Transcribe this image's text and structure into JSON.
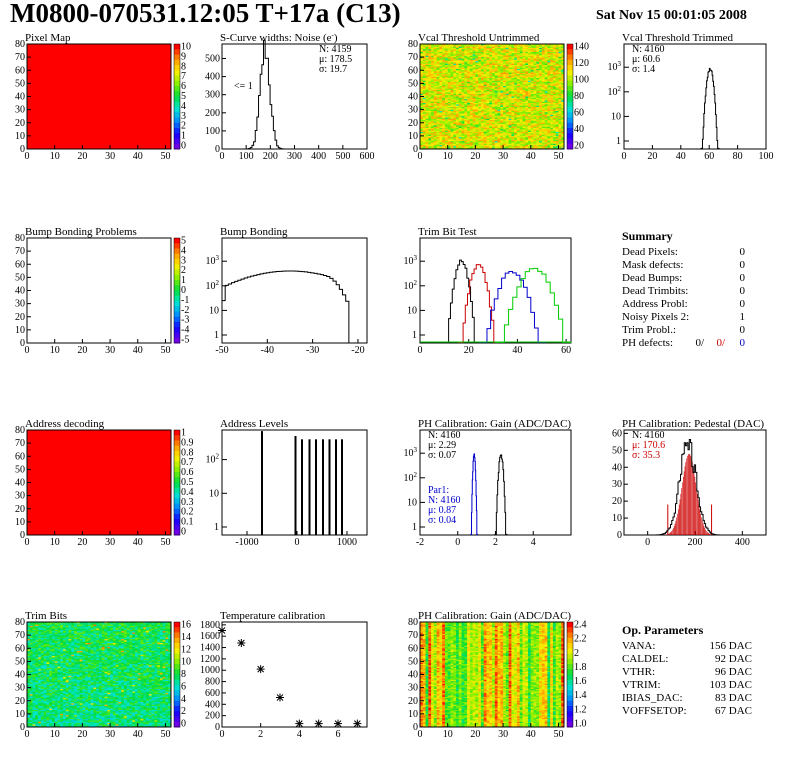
{
  "header": {
    "title": "M0800-070531.12:05 T+17a (C13)",
    "date": "Sat Nov 15 00:01:05 2008"
  },
  "colors": {
    "red_fill": "#ff0000",
    "blue_hist": "#0000cc",
    "red_hist": "#cc0000",
    "green_hist": "#00cc00"
  },
  "chart_data": [
    {
      "id": "pixel_map",
      "type": "heatmap",
      "title": "Pixel Map",
      "xlim": [
        0,
        52
      ],
      "ylim": [
        0,
        80
      ],
      "xticks": [
        0,
        10,
        20,
        30,
        40,
        50
      ],
      "yticks": [
        0,
        10,
        20,
        30,
        40,
        50,
        60,
        70,
        80
      ],
      "zlim": [
        0,
        10
      ],
      "zticks": [
        "10",
        "9",
        "8",
        "7",
        "6",
        "5",
        "4",
        "3",
        "2",
        "1",
        "0"
      ],
      "fill": "uniform-max"
    },
    {
      "id": "scurve",
      "type": "histogram",
      "title": "S-Curve widths: Noise (e",
      "title_sup": "-",
      "title_end": ")",
      "xlim": [
        0,
        600
      ],
      "ylim": [
        0,
        580
      ],
      "xticks": [
        0,
        100,
        200,
        300,
        400,
        500,
        600
      ],
      "yticks": [
        0,
        100,
        200,
        300,
        400,
        500
      ],
      "stats": [
        "N: 4159",
        "μ: 178.5",
        "σ: 19.7"
      ],
      "annotation": "<= 1",
      "peak": {
        "mean": 178.5,
        "sigma": 19.7,
        "max": 560
      }
    },
    {
      "id": "vcal_untrimmed",
      "type": "heatmap",
      "title": "Vcal Threshold Untrimmed",
      "xlim": [
        0,
        52
      ],
      "ylim": [
        0,
        80
      ],
      "xticks": [
        0,
        10,
        20,
        30,
        40,
        50
      ],
      "yticks": [
        0,
        10,
        20,
        30,
        40,
        50,
        60,
        70,
        80
      ],
      "zticks": [
        "140",
        "120",
        "100",
        "80",
        "60",
        "40",
        "20"
      ],
      "fill": "noise-yellow"
    },
    {
      "id": "vcal_trimmed",
      "type": "histogram",
      "title": "Vcal Threshold Trimmed",
      "log": true,
      "xlim": [
        0,
        100
      ],
      "xticks": [
        0,
        20,
        40,
        60,
        80,
        100
      ],
      "yticks": [
        "1",
        "10",
        "10^2",
        "10^3"
      ],
      "stats": [
        "N: 4160",
        "μ: 60.6",
        "σ:  1.4"
      ],
      "peak": {
        "mean": 60.6,
        "sigma": 1.4,
        "max": 900
      }
    },
    {
      "id": "bump_problems",
      "type": "heatmap",
      "title": "Bump Bonding Problems",
      "xlim": [
        0,
        52
      ],
      "ylim": [
        0,
        80
      ],
      "xticks": [
        0,
        10,
        20,
        30,
        40,
        50
      ],
      "yticks": [
        0,
        10,
        20,
        30,
        40,
        50,
        60,
        70,
        80
      ],
      "zticks": [
        "5",
        "4",
        "3",
        "2",
        "1",
        "0",
        "-1",
        "-2",
        "-3",
        "-4",
        "-5"
      ],
      "fill": "empty"
    },
    {
      "id": "bump_bonding",
      "type": "histogram",
      "title": "Bump Bonding",
      "log": true,
      "xlim": [
        -50,
        -18
      ],
      "xticks": [
        -50,
        -40,
        -30,
        -20
      ],
      "yticks": [
        "1",
        "10",
        "10^2",
        "10^3"
      ],
      "peak": {
        "mean": -35,
        "sigma": 7,
        "max": 400
      }
    },
    {
      "id": "trim_bit_test",
      "type": "histogram",
      "title": "Trim Bit Test",
      "log": true,
      "xlim": [
        0,
        62
      ],
      "xticks": [
        0,
        20,
        40,
        60
      ],
      "yticks": [
        "1",
        "10",
        "10^2",
        "10^3"
      ],
      "series": [
        {
          "color": "#000000",
          "mean": 17,
          "sigma": 1.5,
          "max": 1000
        },
        {
          "color": "#cc0000",
          "mean": 24,
          "sigma": 1.8,
          "max": 700
        },
        {
          "color": "#0000cc",
          "mean": 38,
          "sigma": 3,
          "max": 400
        },
        {
          "color": "#00cc00",
          "mean": 47,
          "sigma": 3.5,
          "max": 500
        }
      ]
    },
    {
      "id": "address_decoding",
      "type": "heatmap",
      "title": "Address decoding",
      "xlim": [
        0,
        52
      ],
      "ylim": [
        0,
        80
      ],
      "xticks": [
        0,
        10,
        20,
        30,
        40,
        50
      ],
      "yticks": [
        0,
        10,
        20,
        30,
        40,
        50,
        60,
        70,
        80
      ],
      "zticks": [
        "1",
        "0.9",
        "0.8",
        "0.7",
        "0.6",
        "0.5",
        "0.4",
        "0.3",
        "0.2",
        "0.1",
        "0"
      ],
      "fill": "uniform-max"
    },
    {
      "id": "address_levels",
      "type": "histogram",
      "title": "Address Levels",
      "log": true,
      "xlim": [
        -1500,
        1400
      ],
      "xticks": [
        -1000,
        0,
        1000
      ],
      "yticks": [
        "1",
        "10",
        "10^2"
      ],
      "spikes": [
        -700,
        -30,
        100,
        250,
        380,
        520,
        650,
        780,
        900
      ]
    },
    {
      "id": "ph_gain",
      "type": "histogram",
      "title": "PH Calibration: Gain (ADC/DAC)",
      "log": true,
      "xlim": [
        -2,
        6
      ],
      "xticks": [
        -2,
        0,
        2,
        4
      ],
      "yticks": [
        "1",
        "10",
        "10^2",
        "10^3"
      ],
      "stats": [
        "N: 4160",
        "μ: 2.29",
        "σ: 0.07"
      ],
      "stats2": [
        "Par1:",
        "N: 4160",
        "μ: 0.87",
        "σ: 0.04"
      ],
      "series": [
        {
          "color": "#000000",
          "mean": 2.29,
          "sigma": 0.07,
          "max": 900
        },
        {
          "color": "#0000cc",
          "mean": 0.87,
          "sigma": 0.04,
          "max": 900
        }
      ]
    },
    {
      "id": "ph_pedestal",
      "type": "histogram",
      "title": "PH Calibration: Pedestal (DAC)",
      "xlim": [
        -100,
        500
      ],
      "ylim": [
        0,
        62
      ],
      "xticks": [
        0,
        200,
        400
      ],
      "yticks": [
        0,
        10,
        20,
        30,
        40,
        50,
        60
      ],
      "stats": [
        "N: 4160",
        "μ: 170.6",
        "σ: 35.3"
      ],
      "peak": {
        "mean": 170.6,
        "sigma": 35.3,
        "max": 52
      }
    },
    {
      "id": "trim_bits",
      "type": "heatmap",
      "title": "Trim Bits",
      "xlim": [
        0,
        52
      ],
      "ylim": [
        0,
        80
      ],
      "xticks": [
        0,
        10,
        20,
        30,
        40,
        50
      ],
      "yticks": [
        0,
        10,
        20,
        30,
        40,
        50,
        60,
        70,
        80
      ],
      "zticks": [
        "16",
        "14",
        "12",
        "10",
        "8",
        "6",
        "4",
        "2",
        "0"
      ],
      "fill": "noise-green"
    },
    {
      "id": "temp_cal",
      "type": "scatter",
      "title": "Temperature calibration",
      "xlim": [
        0,
        7.5
      ],
      "ylim": [
        0,
        1850
      ],
      "xticks": [
        0,
        2,
        4,
        6
      ],
      "yticks": [
        0,
        200,
        400,
        600,
        800,
        1000,
        1200,
        1400,
        1600,
        1800
      ],
      "x": [
        0,
        1,
        2,
        3,
        4,
        5,
        6,
        7
      ],
      "y": [
        1700,
        1480,
        1020,
        520,
        60,
        60,
        60,
        60
      ]
    },
    {
      "id": "ph_gain_map",
      "type": "heatmap",
      "title": "PH Calibration: Gain (ADC/DAC)",
      "xlim": [
        0,
        52
      ],
      "ylim": [
        0,
        80
      ],
      "xticks": [
        0,
        10,
        20,
        30,
        40,
        50
      ],
      "yticks": [
        0,
        10,
        20,
        30,
        40,
        50,
        60,
        70,
        80
      ],
      "zticks": [
        "2.4",
        "2.2",
        "2",
        "1.8",
        "1.6",
        "1.4",
        "1.2",
        "1.0"
      ],
      "fill": "noise-columns"
    }
  ],
  "summary": {
    "title": "Summary",
    "rows": [
      {
        "label": "Dead Pixels:",
        "value": "0"
      },
      {
        "label": "Mask defects:",
        "value": "0"
      },
      {
        "label": "Dead Bumps:",
        "value": "0"
      },
      {
        "label": "Dead Trimbits:",
        "value": "0"
      },
      {
        "label": "Address Probl:",
        "value": "0"
      },
      {
        "label": "Noisy Pixels 2:",
        "value": "1"
      },
      {
        "label": "Trim Probl.:",
        "value": "0"
      }
    ],
    "ph_label": "PH defects:",
    "ph_values": [
      "0/",
      "0/",
      "0"
    ]
  },
  "op_params": {
    "title": "Op. Parameters",
    "rows": [
      {
        "label": "VANA:",
        "value": "156 DAC"
      },
      {
        "label": "CALDEL:",
        "value": "92 DAC"
      },
      {
        "label": "VTHR:",
        "value": "96 DAC"
      },
      {
        "label": "VTRIM:",
        "value": "103 DAC"
      },
      {
        "label": "IBIAS_DAC:",
        "value": "83 DAC"
      },
      {
        "label": "VOFFSETOP:",
        "value": "67 DAC"
      }
    ]
  }
}
